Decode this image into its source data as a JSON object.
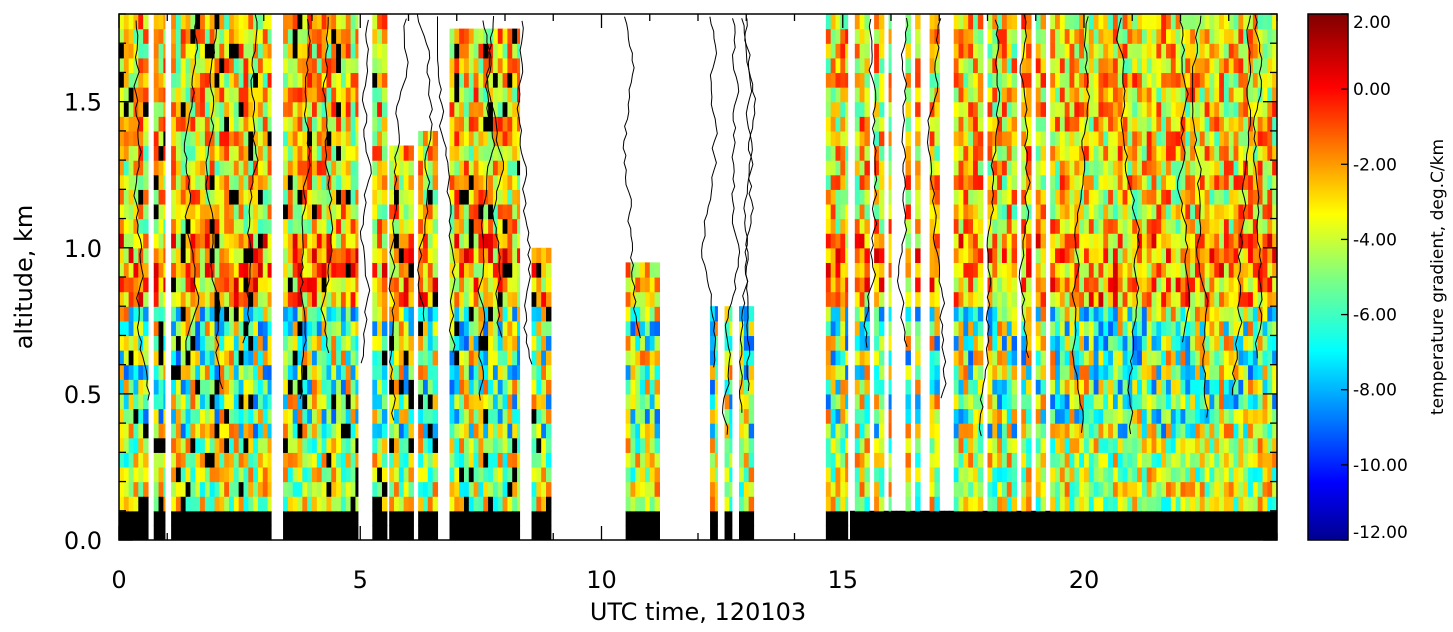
{
  "chart_data": {
    "type": "heatmap",
    "title": "",
    "xlabel": "UTC time, 120103",
    "ylabel": "altitude, km",
    "xlim": [
      0,
      24
    ],
    "ylim": [
      0,
      1.8
    ],
    "x_ticks": [
      {
        "value": 0,
        "label": "0"
      },
      {
        "value": 5,
        "label": "5"
      },
      {
        "value": 10,
        "label": "10"
      },
      {
        "value": 15,
        "label": "15"
      },
      {
        "value": 20,
        "label": "20"
      }
    ],
    "y_ticks": [
      {
        "value": 0.0,
        "label": "0.0"
      },
      {
        "value": 0.5,
        "label": "0.5"
      },
      {
        "value": 1.0,
        "label": "1.0"
      },
      {
        "value": 1.5,
        "label": "1.5"
      }
    ],
    "colorbar": {
      "title": "temperature gradient, deg.C/km",
      "range": [
        -12,
        2
      ],
      "ticks": [
        {
          "value": 2,
          "label": "2.00"
        },
        {
          "value": 0,
          "label": "0.00"
        },
        {
          "value": -2,
          "label": "-2.00"
        },
        {
          "value": -4,
          "label": "-4.00"
        },
        {
          "value": -6,
          "label": "-6.00"
        },
        {
          "value": -8,
          "label": "-8.00"
        },
        {
          "value": -10,
          "label": "-10.00"
        },
        {
          "value": -12,
          "label": "-12.00"
        }
      ],
      "colormap": "jet"
    },
    "altitude_levels_km": [
      0.05,
      0.1,
      0.15,
      0.2,
      0.25,
      0.3,
      0.35,
      0.4,
      0.45,
      0.5,
      0.55,
      0.6,
      0.65,
      0.7,
      0.75,
      0.8,
      0.85,
      0.9,
      0.95,
      1.0,
      1.05,
      1.1,
      1.15,
      1.2,
      1.25,
      1.3,
      1.35,
      1.4,
      1.45,
      1.5,
      1.55,
      1.6,
      1.65,
      1.7,
      1.75,
      1.8
    ],
    "data_segments_utc_h": [
      {
        "start": 0.0,
        "end": 0.6,
        "top_km": 1.8
      },
      {
        "start": 0.72,
        "end": 0.95,
        "top_km": 1.8
      },
      {
        "start": 1.08,
        "end": 3.15,
        "top_km": 1.8
      },
      {
        "start": 3.4,
        "end": 4.95,
        "top_km": 1.8
      },
      {
        "start": 5.25,
        "end": 5.55,
        "top_km": 1.8
      },
      {
        "start": 5.6,
        "end": 6.1,
        "top_km": 1.35
      },
      {
        "start": 6.2,
        "end": 6.6,
        "top_km": 1.4
      },
      {
        "start": 6.85,
        "end": 8.3,
        "top_km": 1.75
      },
      {
        "start": 8.55,
        "end": 8.95,
        "top_km": 1.0
      },
      {
        "start": 10.5,
        "end": 11.2,
        "top_km": 0.95
      },
      {
        "start": 12.25,
        "end": 12.4,
        "top_km": 0.8
      },
      {
        "start": 12.55,
        "end": 12.7,
        "top_km": 0.8
      },
      {
        "start": 12.85,
        "end": 13.15,
        "top_km": 0.8
      },
      {
        "start": 14.65,
        "end": 15.1,
        "top_km": 1.8
      },
      {
        "start": 15.15,
        "end": 16.0,
        "top_km": 1.8
      },
      {
        "start": 16.0,
        "end": 19.5,
        "top_km": 1.8
      },
      {
        "start": 19.5,
        "end": 24.0,
        "top_km": 1.8
      }
    ],
    "profile_lines_utc_h": [
      0.65,
      1.45,
      2.1,
      2.6,
      3.7,
      4.4,
      5.05,
      5.75,
      6.3,
      6.95,
      7.45,
      7.95,
      8.6,
      10.8,
      12.38,
      12.55,
      12.95,
      13.1,
      15.5,
      16.3,
      17.0,
      17.9,
      18.8,
      19.9,
      21.0,
      22.1,
      22.6,
      23.1,
      23.6
    ]
  }
}
